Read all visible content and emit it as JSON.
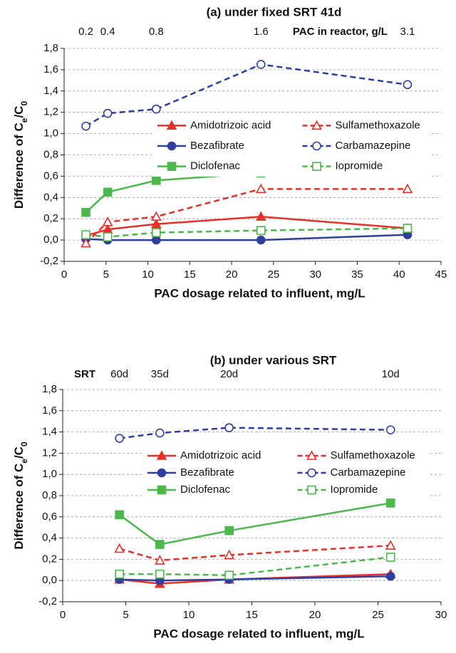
{
  "chart_data": [
    {
      "type": "line",
      "title": "(a)  under fixed SRT 41d",
      "xlabel": "PAC dosage related to influent, mg/L",
      "ylabel": [
        "Difference of C",
        "e",
        "/C",
        "0"
      ],
      "x": [
        2.6,
        5.2,
        11,
        23.5,
        41
      ],
      "xlim": [
        0,
        45
      ],
      "xticks": [
        0,
        5,
        10,
        15,
        20,
        25,
        30,
        35,
        40,
        45
      ],
      "ylim": [
        -0.2,
        1.8
      ],
      "yticks": [
        {
          "value": -0.2,
          "label": "-0,2"
        },
        {
          "value": 0,
          "label": "0,0"
        },
        {
          "value": 0.2,
          "label": "0,2"
        },
        {
          "value": 0.4,
          "label": "0,4"
        },
        {
          "value": 0.6,
          "label": "0,6"
        },
        {
          "value": 0.8,
          "label": "0,8"
        },
        {
          "value": 1.0,
          "label": "1,0"
        },
        {
          "value": 1.2,
          "label": "1,2"
        },
        {
          "value": 1.4,
          "label": "1,4"
        },
        {
          "value": 1.6,
          "label": "1,6"
        },
        {
          "value": 1.8,
          "label": "1,8"
        }
      ],
      "grid": true,
      "top_axis": {
        "label": "PAC in reactor, g/L",
        "ticks": [
          {
            "value": 2.6,
            "label": "0.2"
          },
          {
            "value": 5.2,
            "label": "0.4"
          },
          {
            "value": 11,
            "label": "0.8"
          },
          {
            "value": 23.5,
            "label": "1.6"
          },
          {
            "value": 41,
            "label": "3.1"
          }
        ]
      },
      "series": [
        {
          "name": "Amidotrizoic acid",
          "color": "#e8302a",
          "marker": "triangle",
          "filled": true,
          "dashed": false,
          "values": [
            0.04,
            0.1,
            0.15,
            0.22,
            0.11
          ]
        },
        {
          "name": "Bezafibrate",
          "color": "#2e3f9e",
          "marker": "circle",
          "filled": true,
          "dashed": false,
          "values": [
            0.01,
            0.0,
            0.0,
            0.0,
            0.05
          ]
        },
        {
          "name": "Diclofenac",
          "color": "#4cb84c",
          "marker": "square",
          "filled": true,
          "dashed": false,
          "values": [
            0.26,
            0.45,
            0.56,
            0.63,
            0.7
          ]
        },
        {
          "name": "Sulfamethoxazole",
          "color": "#e8302a",
          "marker": "triangle",
          "filled": false,
          "dashed": true,
          "values": [
            -0.03,
            0.17,
            0.22,
            0.48,
            0.48
          ]
        },
        {
          "name": "Carbamazepine",
          "color": "#2e3f9e",
          "marker": "circle",
          "filled": false,
          "dashed": true,
          "values": [
            1.07,
            1.19,
            1.23,
            1.65,
            1.46
          ]
        },
        {
          "name": "Iopromide",
          "color": "#4cb84c",
          "marker": "square",
          "filled": false,
          "dashed": true,
          "values": [
            0.05,
            0.03,
            0.07,
            0.09,
            0.11
          ]
        }
      ]
    },
    {
      "type": "line",
      "title": "(b)  under various SRT",
      "xlabel": "PAC dosage related to influent, mg/L",
      "ylabel": [
        "Difference of C",
        "e",
        "/C",
        "0"
      ],
      "x": [
        4.5,
        7.7,
        13.2,
        26
      ],
      "xlim": [
        0,
        30
      ],
      "xticks": [
        0,
        5,
        10,
        15,
        20,
        25,
        30
      ],
      "ylim": [
        -0.2,
        1.8
      ],
      "yticks": [
        {
          "value": -0.2,
          "label": "-0,2"
        },
        {
          "value": 0,
          "label": "0,0"
        },
        {
          "value": 0.2,
          "label": "0,2"
        },
        {
          "value": 0.4,
          "label": "0,4"
        },
        {
          "value": 0.6,
          "label": "0,6"
        },
        {
          "value": 0.8,
          "label": "0,8"
        },
        {
          "value": 1.0,
          "label": "1,0"
        },
        {
          "value": 1.2,
          "label": "1,2"
        },
        {
          "value": 1.4,
          "label": "1,4"
        },
        {
          "value": 1.6,
          "label": "1,6"
        },
        {
          "value": 1.8,
          "label": "1,8"
        }
      ],
      "grid": true,
      "top_axis": {
        "label": "SRT",
        "ticks": [
          {
            "value": 4.5,
            "label": "60d"
          },
          {
            "value": 7.7,
            "label": "35d"
          },
          {
            "value": 13.2,
            "label": "20d"
          },
          {
            "value": 26,
            "label": "10d"
          }
        ]
      },
      "series": [
        {
          "name": "Amidotrizoic acid",
          "color": "#e8302a",
          "marker": "triangle",
          "filled": true,
          "dashed": false,
          "values": [
            0.01,
            -0.03,
            0.01,
            0.06
          ]
        },
        {
          "name": "Bezafibrate",
          "color": "#2e3f9e",
          "marker": "circle",
          "filled": true,
          "dashed": false,
          "values": [
            0.01,
            0.0,
            0.01,
            0.04
          ]
        },
        {
          "name": "Diclofenac",
          "color": "#4cb84c",
          "marker": "square",
          "filled": true,
          "dashed": false,
          "values": [
            0.62,
            0.34,
            0.47,
            0.73
          ]
        },
        {
          "name": "Sulfamethoxazole",
          "color": "#e8302a",
          "marker": "triangle",
          "filled": false,
          "dashed": true,
          "values": [
            0.3,
            0.19,
            0.24,
            0.33
          ]
        },
        {
          "name": "Carbamazepine",
          "color": "#2e3f9e",
          "marker": "circle",
          "filled": false,
          "dashed": true,
          "values": [
            1.34,
            1.39,
            1.44,
            1.42
          ]
        },
        {
          "name": "Iopromide",
          "color": "#4cb84c",
          "marker": "square",
          "filled": false,
          "dashed": true,
          "values": [
            0.06,
            0.06,
            0.05,
            0.22
          ]
        }
      ]
    }
  ]
}
